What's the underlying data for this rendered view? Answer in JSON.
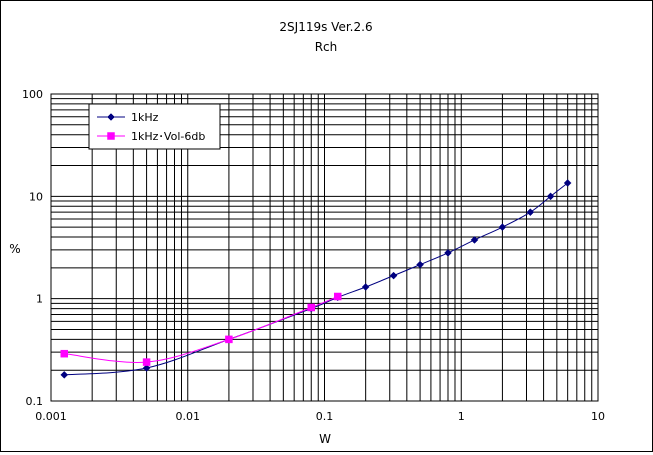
{
  "chart_data": {
    "type": "line",
    "title": "2SJ119s Ver.2.6",
    "subtitle": "Rch",
    "xlabel": "W",
    "ylabel": "%",
    "x_scale": "log",
    "y_scale": "log",
    "xlim": [
      0.001,
      10
    ],
    "ylim": [
      0.1,
      100
    ],
    "x_ticks": [
      0.001,
      0.01,
      0.1,
      1,
      10
    ],
    "x_tick_labels": [
      "0.001",
      "0.01",
      "0.1",
      "1",
      "10"
    ],
    "y_ticks": [
      0.1,
      1,
      10,
      100
    ],
    "y_tick_labels": [
      "0.1",
      "1",
      "10",
      "100"
    ],
    "grid": true,
    "legend_position": "top-left",
    "series": [
      {
        "name": "1kHz",
        "color": "#000080",
        "marker": "diamond",
        "x": [
          0.00125,
          0.005,
          0.02,
          0.08,
          0.125,
          0.2,
          0.32,
          0.5,
          0.8,
          1.25,
          2,
          3.2,
          4.5,
          6
        ],
        "y": [
          0.18,
          0.21,
          0.4,
          0.8,
          1.03,
          1.3,
          1.68,
          2.15,
          2.8,
          3.75,
          5.0,
          7.0,
          10.0,
          13.5
        ]
      },
      {
        "name": "1kHz･Vol-6db",
        "color": "#ff00ff",
        "marker": "square",
        "x": [
          0.00125,
          0.005,
          0.02,
          0.08,
          0.125
        ],
        "y": [
          0.29,
          0.24,
          0.4,
          0.82,
          1.05
        ]
      }
    ]
  }
}
